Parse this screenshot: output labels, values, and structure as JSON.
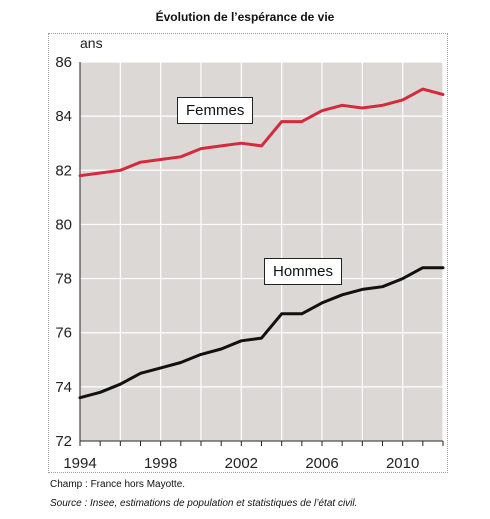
{
  "chart_data": {
    "type": "line",
    "title": "Évolution de l’espérance de vie",
    "ylabel": "ans",
    "ylim": [
      72,
      86
    ],
    "xlim": [
      1994,
      2012
    ],
    "yticks": [
      "72",
      "74",
      "76",
      "78",
      "80",
      "82",
      "84",
      "86"
    ],
    "xticks": [
      "1994",
      "1998",
      "2002",
      "2006",
      "2010"
    ],
    "grid": true,
    "x": [
      1994,
      1995,
      1996,
      1997,
      1998,
      1999,
      2000,
      2001,
      2002,
      2003,
      2004,
      2005,
      2006,
      2007,
      2008,
      2009,
      2010,
      2011,
      2012
    ],
    "series": [
      {
        "name": "Femmes",
        "color": "#d42a3c",
        "values": [
          81.8,
          81.9,
          82.0,
          82.3,
          82.4,
          82.5,
          82.8,
          82.9,
          83.0,
          82.9,
          83.8,
          83.8,
          84.2,
          84.4,
          84.3,
          84.4,
          84.6,
          85.0,
          84.8
        ]
      },
      {
        "name": "Hommes",
        "color": "#111111",
        "values": [
          73.6,
          73.8,
          74.1,
          74.5,
          74.7,
          74.9,
          75.2,
          75.4,
          75.7,
          75.8,
          76.7,
          76.7,
          77.1,
          77.4,
          77.6,
          77.7,
          78.0,
          78.4,
          78.4
        ]
      }
    ],
    "plot_background": "#dcd8d5"
  },
  "notes": {
    "champ": "Champ : France hors Mayotte.",
    "source": "Source : Insee, estimations de population et statistiques de l’état civil."
  }
}
